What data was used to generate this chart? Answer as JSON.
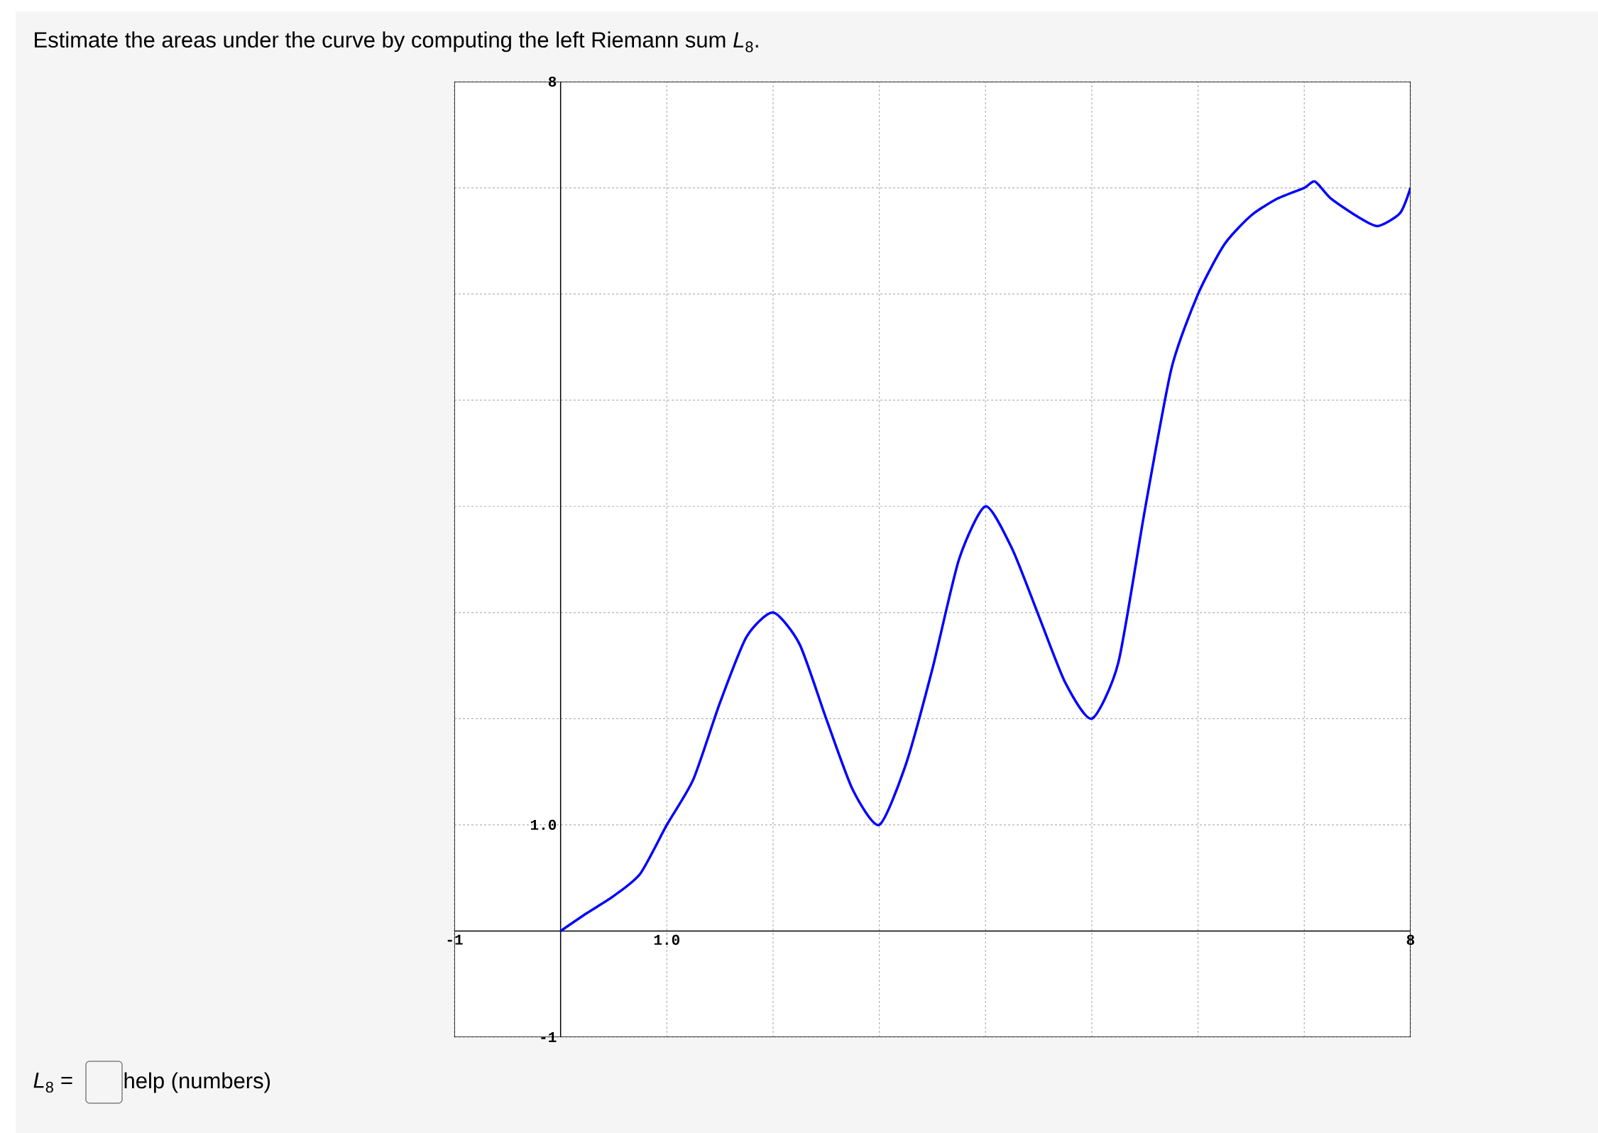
{
  "chart_data": {
    "type": "line",
    "title": "Estimate the areas under the curve by computing the left Riemann sum *L*$_{8}$.",
    "annotations": [
      "*L*$_{8}$ =",
      "help (numbers)"
    ],
    "x": [
      0,
      0.25,
      0.5,
      0.75,
      1,
      1.25,
      1.5,
      1.75,
      2,
      2.25,
      2.5,
      2.75,
      3,
      3.25,
      3.5,
      3.75,
      4,
      4.25,
      4.5,
      4.75,
      5,
      5.25,
      5.5,
      5.75,
      6,
      6.25,
      6.5,
      6.75,
      7,
      7.1,
      7.25,
      7.5,
      7.69,
      7.9,
      8
    ],
    "series": [
      {
        "color": "#0000ff",
        "values": [
          0,
          0.17,
          0.33,
          0.54,
          1.0,
          1.43,
          2.15,
          2.77,
          3.0,
          2.7,
          2.0,
          1.33,
          1.0,
          1.57,
          2.47,
          3.5,
          4.0,
          3.6,
          2.97,
          2.34,
          2.0,
          2.53,
          3.97,
          5.3,
          6.0,
          6.47,
          6.74,
          6.9,
          7.0,
          7.06,
          6.9,
          6.73,
          6.64,
          6.76,
          7.0
        ]
      }
    ],
    "xlim": [
      -1,
      8
    ],
    "ylim": [
      -1,
      8
    ],
    "xticks": [
      -1,
      {
        "value": 0,
        "label": null
      },
      {
        "value": 1,
        "label": "1.0"
      },
      {
        "value": 2,
        "label": null
      },
      {
        "value": 3,
        "label": null
      },
      {
        "value": 4,
        "label": null
      },
      {
        "value": 5,
        "label": null
      },
      {
        "value": 6,
        "label": null
      },
      {
        "value": 7,
        "label": null
      },
      8
    ],
    "yticks": [
      -1,
      {
        "value": 0,
        "label": null
      },
      {
        "value": 1,
        "label": "1.0"
      },
      {
        "value": 2,
        "label": null
      },
      {
        "value": 3,
        "label": null
      },
      {
        "value": 4,
        "label": null
      },
      {
        "value": 5,
        "label": null
      },
      {
        "value": 6,
        "label": null
      },
      {
        "value": 7,
        "label": null
      },
      8
    ],
    "grid": true,
    "marker": "none",
    "line_style": "solid"
  }
}
